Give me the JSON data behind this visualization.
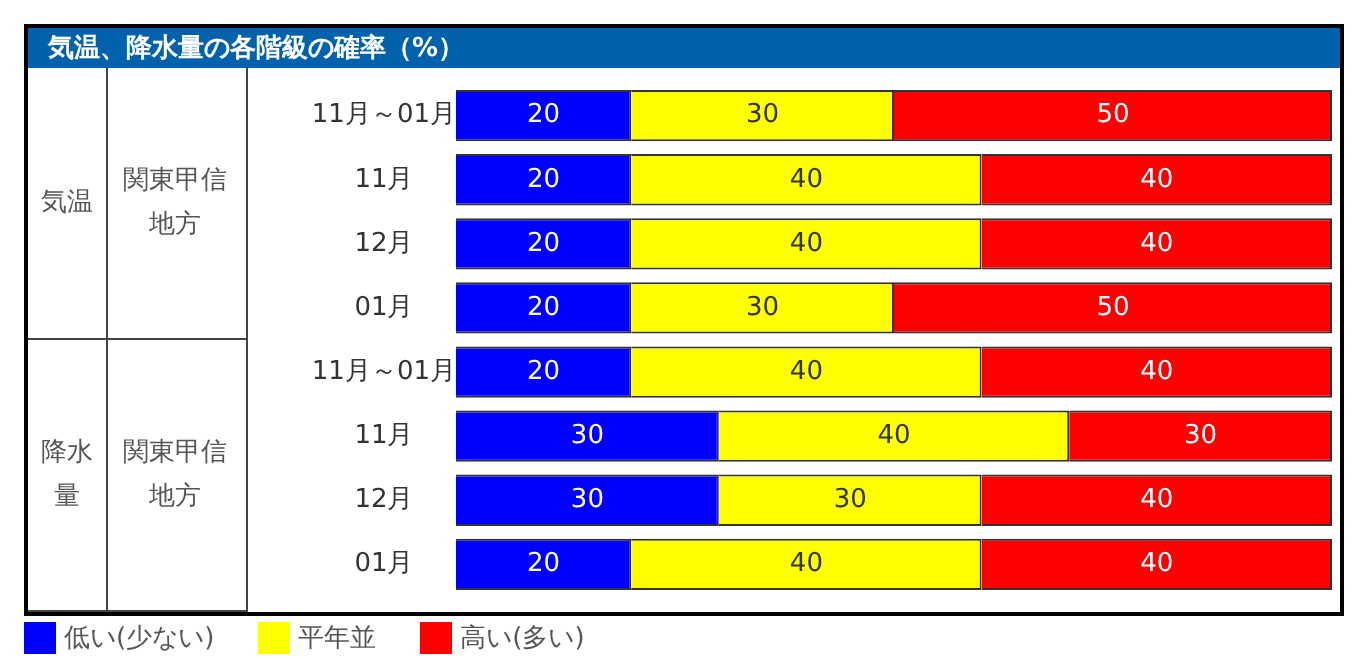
{
  "chart_data": {
    "type": "bar",
    "orientation": "horizontal",
    "stacked": true,
    "title": "気温、降水量の各階級の確率（%）",
    "categories": [
      "11月～01月",
      "11月",
      "12月",
      "01月",
      "11月～01月",
      "11月",
      "12月",
      "01月"
    ],
    "series": [
      {
        "name": "低い(少ない)",
        "color": "#0000ff",
        "values": [
          20,
          20,
          20,
          20,
          20,
          30,
          30,
          20
        ]
      },
      {
        "name": "平年並",
        "color": "#ffff00",
        "values": [
          30,
          40,
          40,
          30,
          40,
          40,
          30,
          40
        ]
      },
      {
        "name": "高い(多い)",
        "color": "#ff0000",
        "values": [
          50,
          40,
          40,
          50,
          40,
          30,
          40,
          40
        ]
      }
    ],
    "annotations": [
      "気温",
      "関東甲信地方",
      "降水量",
      "関東甲信地方"
    ],
    "data_labels": true,
    "legend": "bottom left"
  }
}
